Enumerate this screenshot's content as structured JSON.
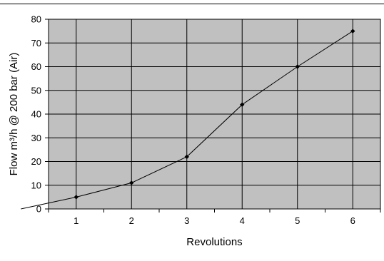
{
  "chart_data": {
    "type": "line",
    "title": "",
    "xlabel": "Revolutions",
    "ylabel": "Flow m³/h @ 200 bar (Air)",
    "x": [
      0,
      1,
      2,
      3,
      4,
      5,
      6
    ],
    "y": [
      0,
      5,
      11,
      22,
      44,
      60,
      75
    ],
    "x_tick_labels": [
      "1",
      "2",
      "3",
      "4",
      "5",
      "6"
    ],
    "y_ticks": [
      0,
      10,
      20,
      30,
      40,
      50,
      60,
      70,
      80
    ],
    "xlim": [
      0.5,
      6.5
    ],
    "ylim": [
      0,
      80
    ],
    "grid": true,
    "legend": "none",
    "colors": {
      "plot_background": "#c0c0c0",
      "grid": "#000000",
      "line": "#000000",
      "marker": "#000000"
    }
  }
}
